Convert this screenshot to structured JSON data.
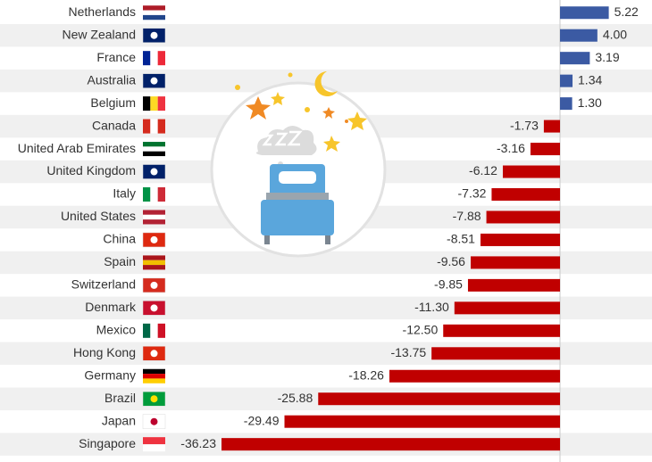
{
  "chart_data": {
    "type": "bar",
    "orientation": "horizontal",
    "categories": [
      "Netherlands",
      "New Zealand",
      "France",
      "Australia",
      "Belgium",
      "Canada",
      "United Arab Emirates",
      "United Kingdom",
      "Italy",
      "United States",
      "China",
      "Spain",
      "Switzerland",
      "Denmark",
      "Mexico",
      "Hong Kong",
      "Germany",
      "Brazil",
      "Japan",
      "Singapore"
    ],
    "values": [
      5.22,
      4.0,
      3.19,
      1.34,
      1.3,
      -1.73,
      -3.16,
      -6.12,
      -7.32,
      -7.88,
      -8.51,
      -9.56,
      -9.85,
      -11.3,
      -12.5,
      -13.75,
      -18.26,
      -25.88,
      -29.49,
      -36.23
    ],
    "value_labels": [
      "5.22",
      "4.00",
      "3.19",
      "1.34",
      "1.30",
      "-1.73",
      "-3.16",
      "-6.12",
      "-7.32",
      "-7.88",
      "-8.51",
      "-9.56",
      "-9.85",
      "-11.30",
      "-12.50",
      "-13.75",
      "-18.26",
      "-25.88",
      "-29.49",
      "-36.23"
    ],
    "positive_color": "#3b5aa3",
    "negative_color": "#c00000"
  }
}
